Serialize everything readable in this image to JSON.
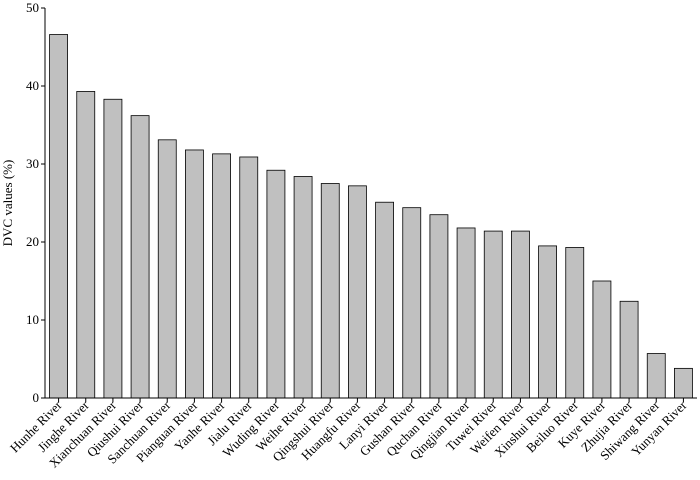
{
  "chart_data": {
    "type": "bar",
    "y_label": "DVC values (%)",
    "categories": [
      "Hunhe River",
      "Jinghe River",
      "Xianchuan River",
      "Qiushui River",
      "Sanchuan River",
      "Pianguan River",
      "Yanhe River",
      "Jialu River",
      "Wuding River",
      "Weihe River",
      "Qingshui River",
      "Huangfu River",
      "Lanyi River",
      "Gushan River",
      "Quchan River",
      "Qingjian River",
      "Tuwei River",
      "Weifen River",
      "Xinshui River",
      "Beiluo River",
      "Kuye River",
      "Zhujia River",
      "Shiwang River",
      "Yunyan River"
    ],
    "values": [
      46.6,
      39.3,
      38.3,
      36.2,
      33.1,
      31.8,
      31.3,
      30.9,
      29.2,
      28.4,
      27.5,
      27.2,
      25.1,
      24.4,
      23.5,
      21.8,
      21.4,
      21.4,
      19.5,
      19.3,
      15.0,
      12.4,
      5.7,
      3.8
    ],
    "color": "#c0c0c0",
    "ylim": [
      0,
      50
    ],
    "yticks": [
      0,
      10,
      20,
      30,
      40,
      50
    ]
  }
}
